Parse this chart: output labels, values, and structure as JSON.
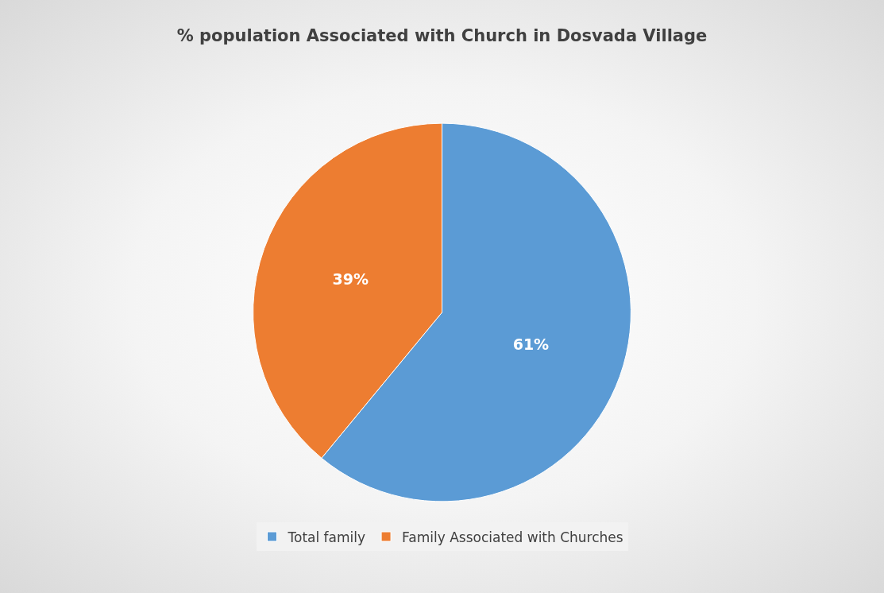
{
  "chart_data": {
    "type": "pie",
    "title": "% population Associated with Church in Dosvada Village",
    "categories": [
      "Total family",
      "Family Associated with Churches"
    ],
    "values": [
      61,
      39
    ],
    "colors": [
      "#5b9bd5",
      "#ed7d31"
    ],
    "value_labels": [
      "61%",
      "39%"
    ],
    "legend": "bottom"
  }
}
